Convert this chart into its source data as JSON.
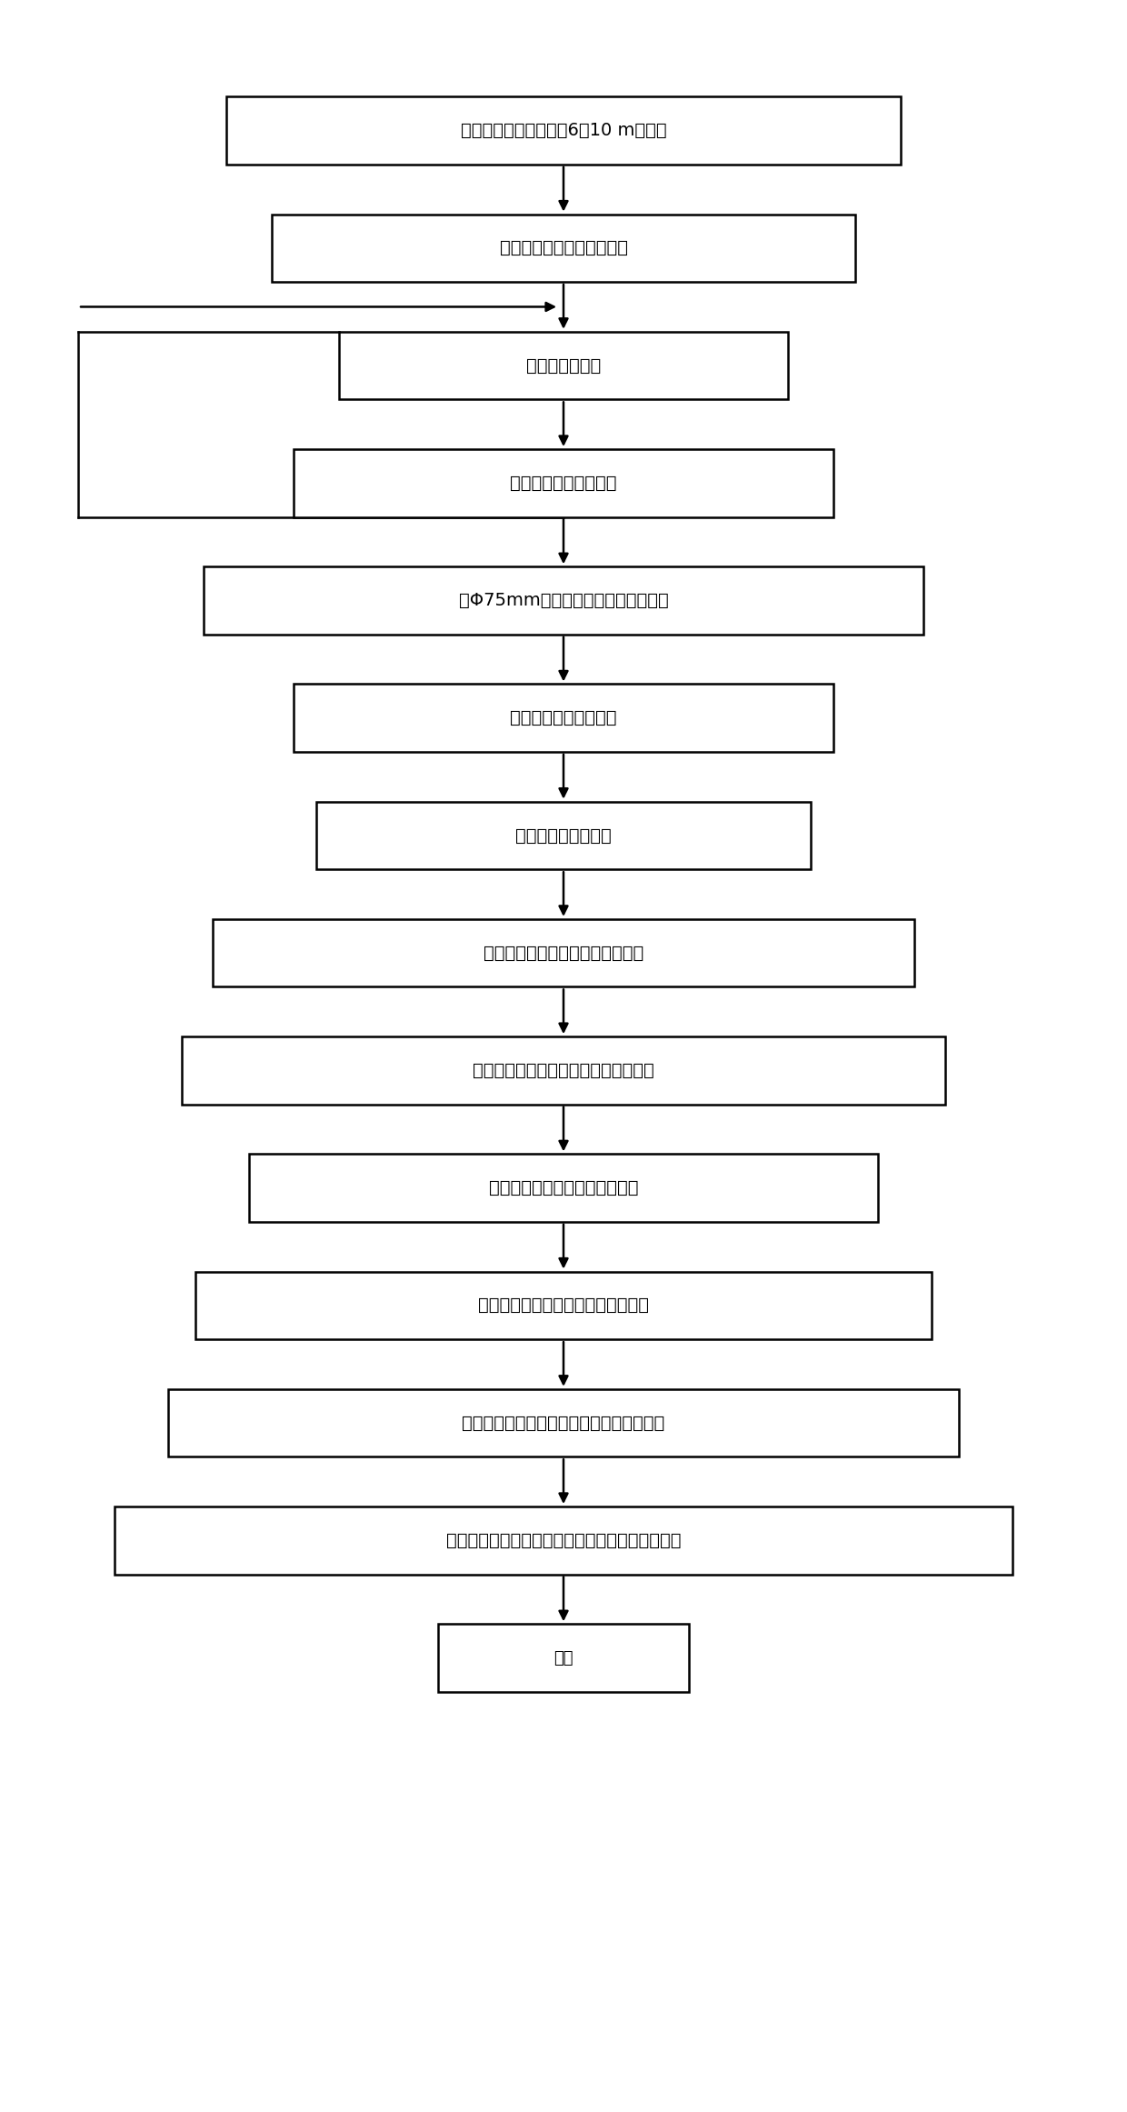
{
  "steps": [
    "向煤层方向打一个深为6～10 m的钻孔",
    "插入带有法兰盘的的孔口管",
    "注浆固定孔口管",
    "凝固后孔口管打钻试压",
    "用Φ75mm钻头打钻至煤层中预定位置",
    "对钻孔周围的煤层注浆",
    "浆液凝固后重新打钻",
    "用推杆将胶囊推入煤层中预定位置",
    "将瓦斯管及水管与法兰盖上的街头相连",
    "将法兰盖与孔口管上的法兰连接",
    "向胶囊中注入压力水，膨胀封住钻孔",
    "用高压注浆泵向法兰盖以内的钻孔注水泥浆",
    "将压力表与法兰盖上的瓦斯管连接，观测瓦斯压力",
    "结束"
  ],
  "bg_color": "#ffffff",
  "box_edge_color": "#000000",
  "arrow_color": "#000000",
  "text_color": "#000000",
  "figsize": [
    12.4,
    23.23
  ],
  "dpi": 100
}
